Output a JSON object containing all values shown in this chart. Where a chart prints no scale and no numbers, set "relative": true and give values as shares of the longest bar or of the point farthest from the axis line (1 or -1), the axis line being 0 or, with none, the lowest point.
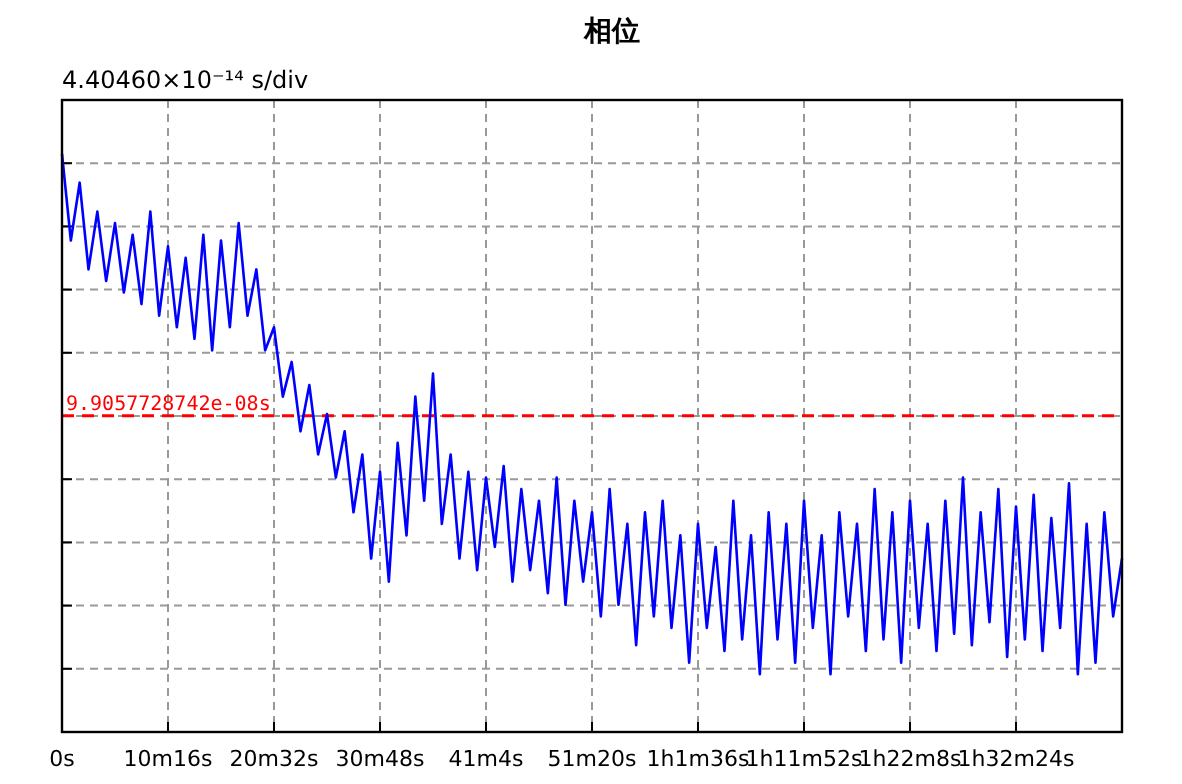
{
  "chart_data": {
    "type": "line",
    "title": "相位",
    "ylabel": "4.40460×10⁻¹⁴ s/div",
    "relative": true,
    "grid": true,
    "tick_labels": "x",
    "marker": "none",
    "line_style": "solid",
    "categories": [
      "0s",
      null,
      null,
      null,
      null,
      null,
      null,
      null,
      null,
      null,
      null,
      null,
      "10m16s",
      null,
      null,
      null,
      null,
      null,
      null,
      null,
      null,
      null,
      null,
      null,
      "20m32s",
      null,
      null,
      null,
      null,
      null,
      null,
      null,
      null,
      null,
      null,
      null,
      "30m48s",
      null,
      null,
      null,
      null,
      null,
      null,
      null,
      null,
      null,
      null,
      null,
      "41m4s",
      null,
      null,
      null,
      null,
      null,
      null,
      null,
      null,
      null,
      null,
      null,
      "51m20s",
      null,
      null,
      null,
      null,
      null,
      null,
      null,
      null,
      null,
      null,
      null,
      "1h1m36s",
      null,
      null,
      null,
      null,
      null,
      null,
      null,
      null,
      null,
      null,
      null,
      "1h11m52s",
      null,
      null,
      null,
      null,
      null,
      null,
      null,
      null,
      null,
      null,
      null,
      "1h22m8s",
      null,
      null,
      null,
      null,
      null,
      null,
      null,
      null,
      null,
      null,
      null,
      "1h32m24s",
      null,
      null,
      null,
      null,
      null,
      null,
      null,
      null,
      null,
      null,
      null,
      null
    ],
    "ref_lines": [
      {
        "axis": "y",
        "value": 0.547,
        "label": "9.9057728742e-08s",
        "color": "#ff0000",
        "line_style": "dashed"
      }
    ],
    "series": [
      {
        "color": "#0000ff",
        "values": [
          1.0,
          0.85,
          0.95,
          0.8,
          0.9,
          0.78,
          0.88,
          0.76,
          0.86,
          0.74,
          0.9,
          0.72,
          0.84,
          0.7,
          0.82,
          0.68,
          0.86,
          0.66,
          0.85,
          0.7,
          0.88,
          0.72,
          0.8,
          0.66,
          0.7,
          0.58,
          0.64,
          0.52,
          0.6,
          0.48,
          0.55,
          0.44,
          0.52,
          0.38,
          0.48,
          0.3,
          0.45,
          0.26,
          0.5,
          0.34,
          0.58,
          0.4,
          0.62,
          0.36,
          0.48,
          0.3,
          0.45,
          0.28,
          0.44,
          0.32,
          0.46,
          0.26,
          0.42,
          0.28,
          0.4,
          0.24,
          0.44,
          0.22,
          0.4,
          0.26,
          0.38,
          0.2,
          0.42,
          0.22,
          0.36,
          0.15,
          0.38,
          0.2,
          0.4,
          0.18,
          0.34,
          0.12,
          0.36,
          0.18,
          0.32,
          0.14,
          0.4,
          0.16,
          0.34,
          0.1,
          0.38,
          0.16,
          0.36,
          0.12,
          0.4,
          0.18,
          0.34,
          0.1,
          0.38,
          0.2,
          0.36,
          0.14,
          0.42,
          0.16,
          0.38,
          0.12,
          0.4,
          0.18,
          0.36,
          0.14,
          0.4,
          0.17,
          0.44,
          0.15,
          0.38,
          0.19,
          0.42,
          0.13,
          0.39,
          0.16,
          0.41,
          0.14,
          0.37,
          0.18,
          0.43,
          0.1,
          0.36,
          0.12,
          0.38,
          0.2,
          0.3
        ]
      }
    ]
  }
}
